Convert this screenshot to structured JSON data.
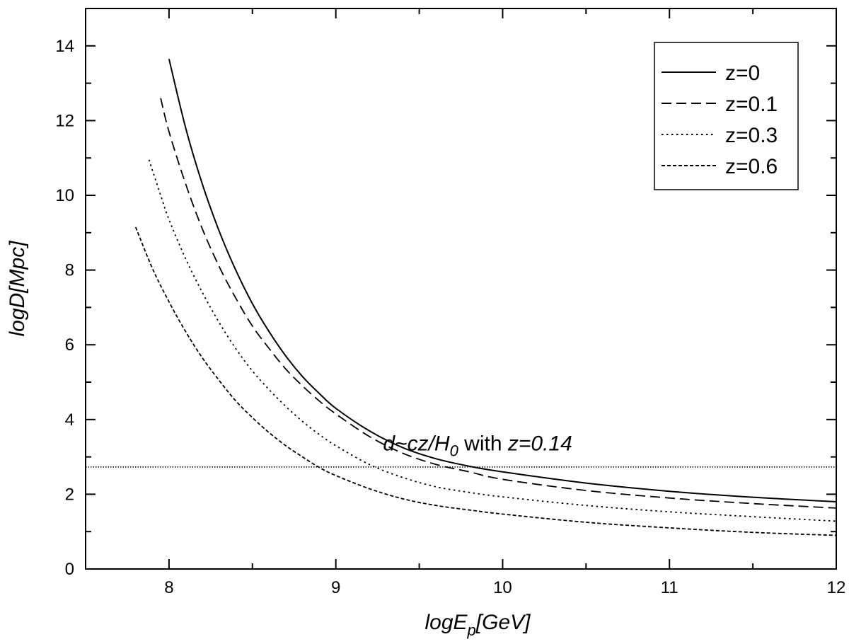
{
  "chart_data": {
    "type": "line",
    "xlabel": {
      "main": "logE",
      "sub": "p",
      "unit": "[GeV]"
    },
    "ylabel": "logD[Mpc]",
    "xlim": [
      7.5,
      12
    ],
    "ylim": [
      0,
      15
    ],
    "x_ticks": [
      8,
      9,
      10,
      11,
      12
    ],
    "y_ticks": [
      0,
      2,
      4,
      6,
      8,
      10,
      12,
      14
    ],
    "grid": false,
    "legend_position": "top-right",
    "series": [
      {
        "name": "z=0",
        "style": "solid",
        "x": [
          8.0,
          8.1,
          8.2,
          8.3,
          8.4,
          8.5,
          8.6,
          8.7,
          8.8,
          8.9,
          9.0,
          9.2,
          9.4,
          9.6,
          9.8,
          10.0,
          10.5,
          11.0,
          11.5,
          12.0
        ],
        "y": [
          13.65,
          11.8,
          10.3,
          9.05,
          8.0,
          7.1,
          6.35,
          5.7,
          5.15,
          4.7,
          4.3,
          3.7,
          3.25,
          2.95,
          2.75,
          2.6,
          2.3,
          2.08,
          1.92,
          1.8
        ]
      },
      {
        "name": "z=0.1",
        "style": "dashed",
        "x": [
          7.95,
          8.0,
          8.1,
          8.2,
          8.3,
          8.4,
          8.5,
          8.6,
          8.7,
          8.8,
          8.9,
          9.0,
          9.2,
          9.4,
          9.6,
          9.8,
          10.0,
          10.5,
          11.0,
          11.5,
          12.0
        ],
        "y": [
          12.6,
          11.7,
          10.3,
          9.1,
          8.1,
          7.25,
          6.5,
          5.9,
          5.35,
          4.9,
          4.5,
          4.15,
          3.55,
          3.1,
          2.8,
          2.6,
          2.4,
          2.1,
          1.9,
          1.75,
          1.63
        ]
      },
      {
        "name": "z=0.3",
        "style": "dotted",
        "x": [
          7.88,
          7.95,
          8.0,
          8.1,
          8.2,
          8.3,
          8.4,
          8.5,
          8.6,
          8.7,
          8.8,
          8.9,
          9.0,
          9.2,
          9.4,
          9.6,
          9.8,
          10.0,
          10.5,
          11.0,
          11.5,
          12.0
        ],
        "y": [
          10.95,
          10.0,
          9.35,
          8.3,
          7.4,
          6.6,
          5.9,
          5.3,
          4.8,
          4.35,
          3.95,
          3.6,
          3.3,
          2.8,
          2.45,
          2.2,
          2.05,
          1.93,
          1.7,
          1.53,
          1.4,
          1.28
        ]
      },
      {
        "name": "z=0.6",
        "style": "short-dashed",
        "x": [
          7.8,
          7.9,
          8.0,
          8.1,
          8.2,
          8.3,
          8.4,
          8.5,
          8.6,
          8.7,
          8.8,
          8.9,
          9.0,
          9.2,
          9.4,
          9.6,
          9.8,
          10.0,
          10.5,
          11.0,
          11.5,
          12.0
        ],
        "y": [
          9.15,
          8.05,
          7.15,
          6.35,
          5.65,
          5.05,
          4.5,
          4.05,
          3.65,
          3.3,
          3.0,
          2.72,
          2.5,
          2.15,
          1.88,
          1.7,
          1.58,
          1.47,
          1.25,
          1.1,
          0.98,
          0.9
        ]
      }
    ],
    "reference_line": {
      "style": "dotted",
      "y": 2.73
    },
    "annotation": {
      "prefix": "d~cz/H",
      "sub": "0",
      "middle": " with ",
      "suffix": "z=0.14",
      "x": 9.85,
      "y": 3.4
    }
  }
}
